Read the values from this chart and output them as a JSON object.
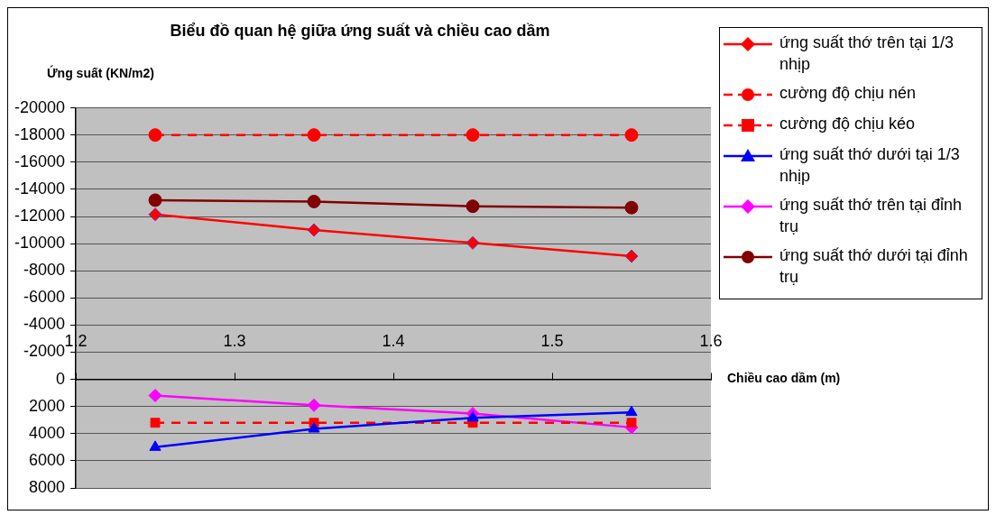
{
  "chart_data": {
    "type": "line",
    "title": "Biểu đồ quan hệ giữa ứng suất và chiều cao dầm",
    "xlabel": "Chiều cao dầm (m)",
    "ylabel": "Ứng suất (KN/m2)",
    "x": [
      1.25,
      1.35,
      1.45,
      1.55
    ],
    "xlim": [
      1.2,
      1.6
    ],
    "xticks": [
      1.2,
      1.3,
      1.4,
      1.5,
      1.6
    ],
    "ylim": [
      8000,
      -20000
    ],
    "yticks": [
      -20000,
      -18000,
      -16000,
      -14000,
      -12000,
      -10000,
      -8000,
      -6000,
      -4000,
      -2000,
      0,
      2000,
      4000,
      6000,
      8000
    ],
    "grid": "y",
    "legend": "right",
    "series": [
      {
        "name": "ứng suất thớ trên tại 1/3 nhịp",
        "color": "#ff0000",
        "marker": "diamond",
        "values": [
          -12150,
          -11000,
          -10050,
          -9070
        ]
      },
      {
        "name": "cường độ chịu nén",
        "color": "#ff0000",
        "marker": "circle",
        "line_style": "dashed",
        "values": [
          -18000,
          -18000,
          -18000,
          -18000
        ]
      },
      {
        "name": "cường độ chịu kéo",
        "color": "#ff0000",
        "marker": "square",
        "line_style": "dashed",
        "values": [
          3200,
          3200,
          3200,
          3200
        ]
      },
      {
        "name": "ứng suất thớ dưới tại 1/3 nhịp",
        "color": "#0000ff",
        "marker": "triangle",
        "values": [
          5000,
          3650,
          2840,
          2430
        ]
      },
      {
        "name": "ứng suất thớ trên tại đỉnh trụ",
        "color": "#ff00ff",
        "marker": "diamond",
        "values": [
          1190,
          1910,
          2520,
          3540
        ]
      },
      {
        "name": "ứng suất thớ dưới tại đỉnh trụ",
        "color": "#800000",
        "marker": "circle",
        "values": [
          -13200,
          -13100,
          -12750,
          -12650
        ]
      }
    ]
  }
}
